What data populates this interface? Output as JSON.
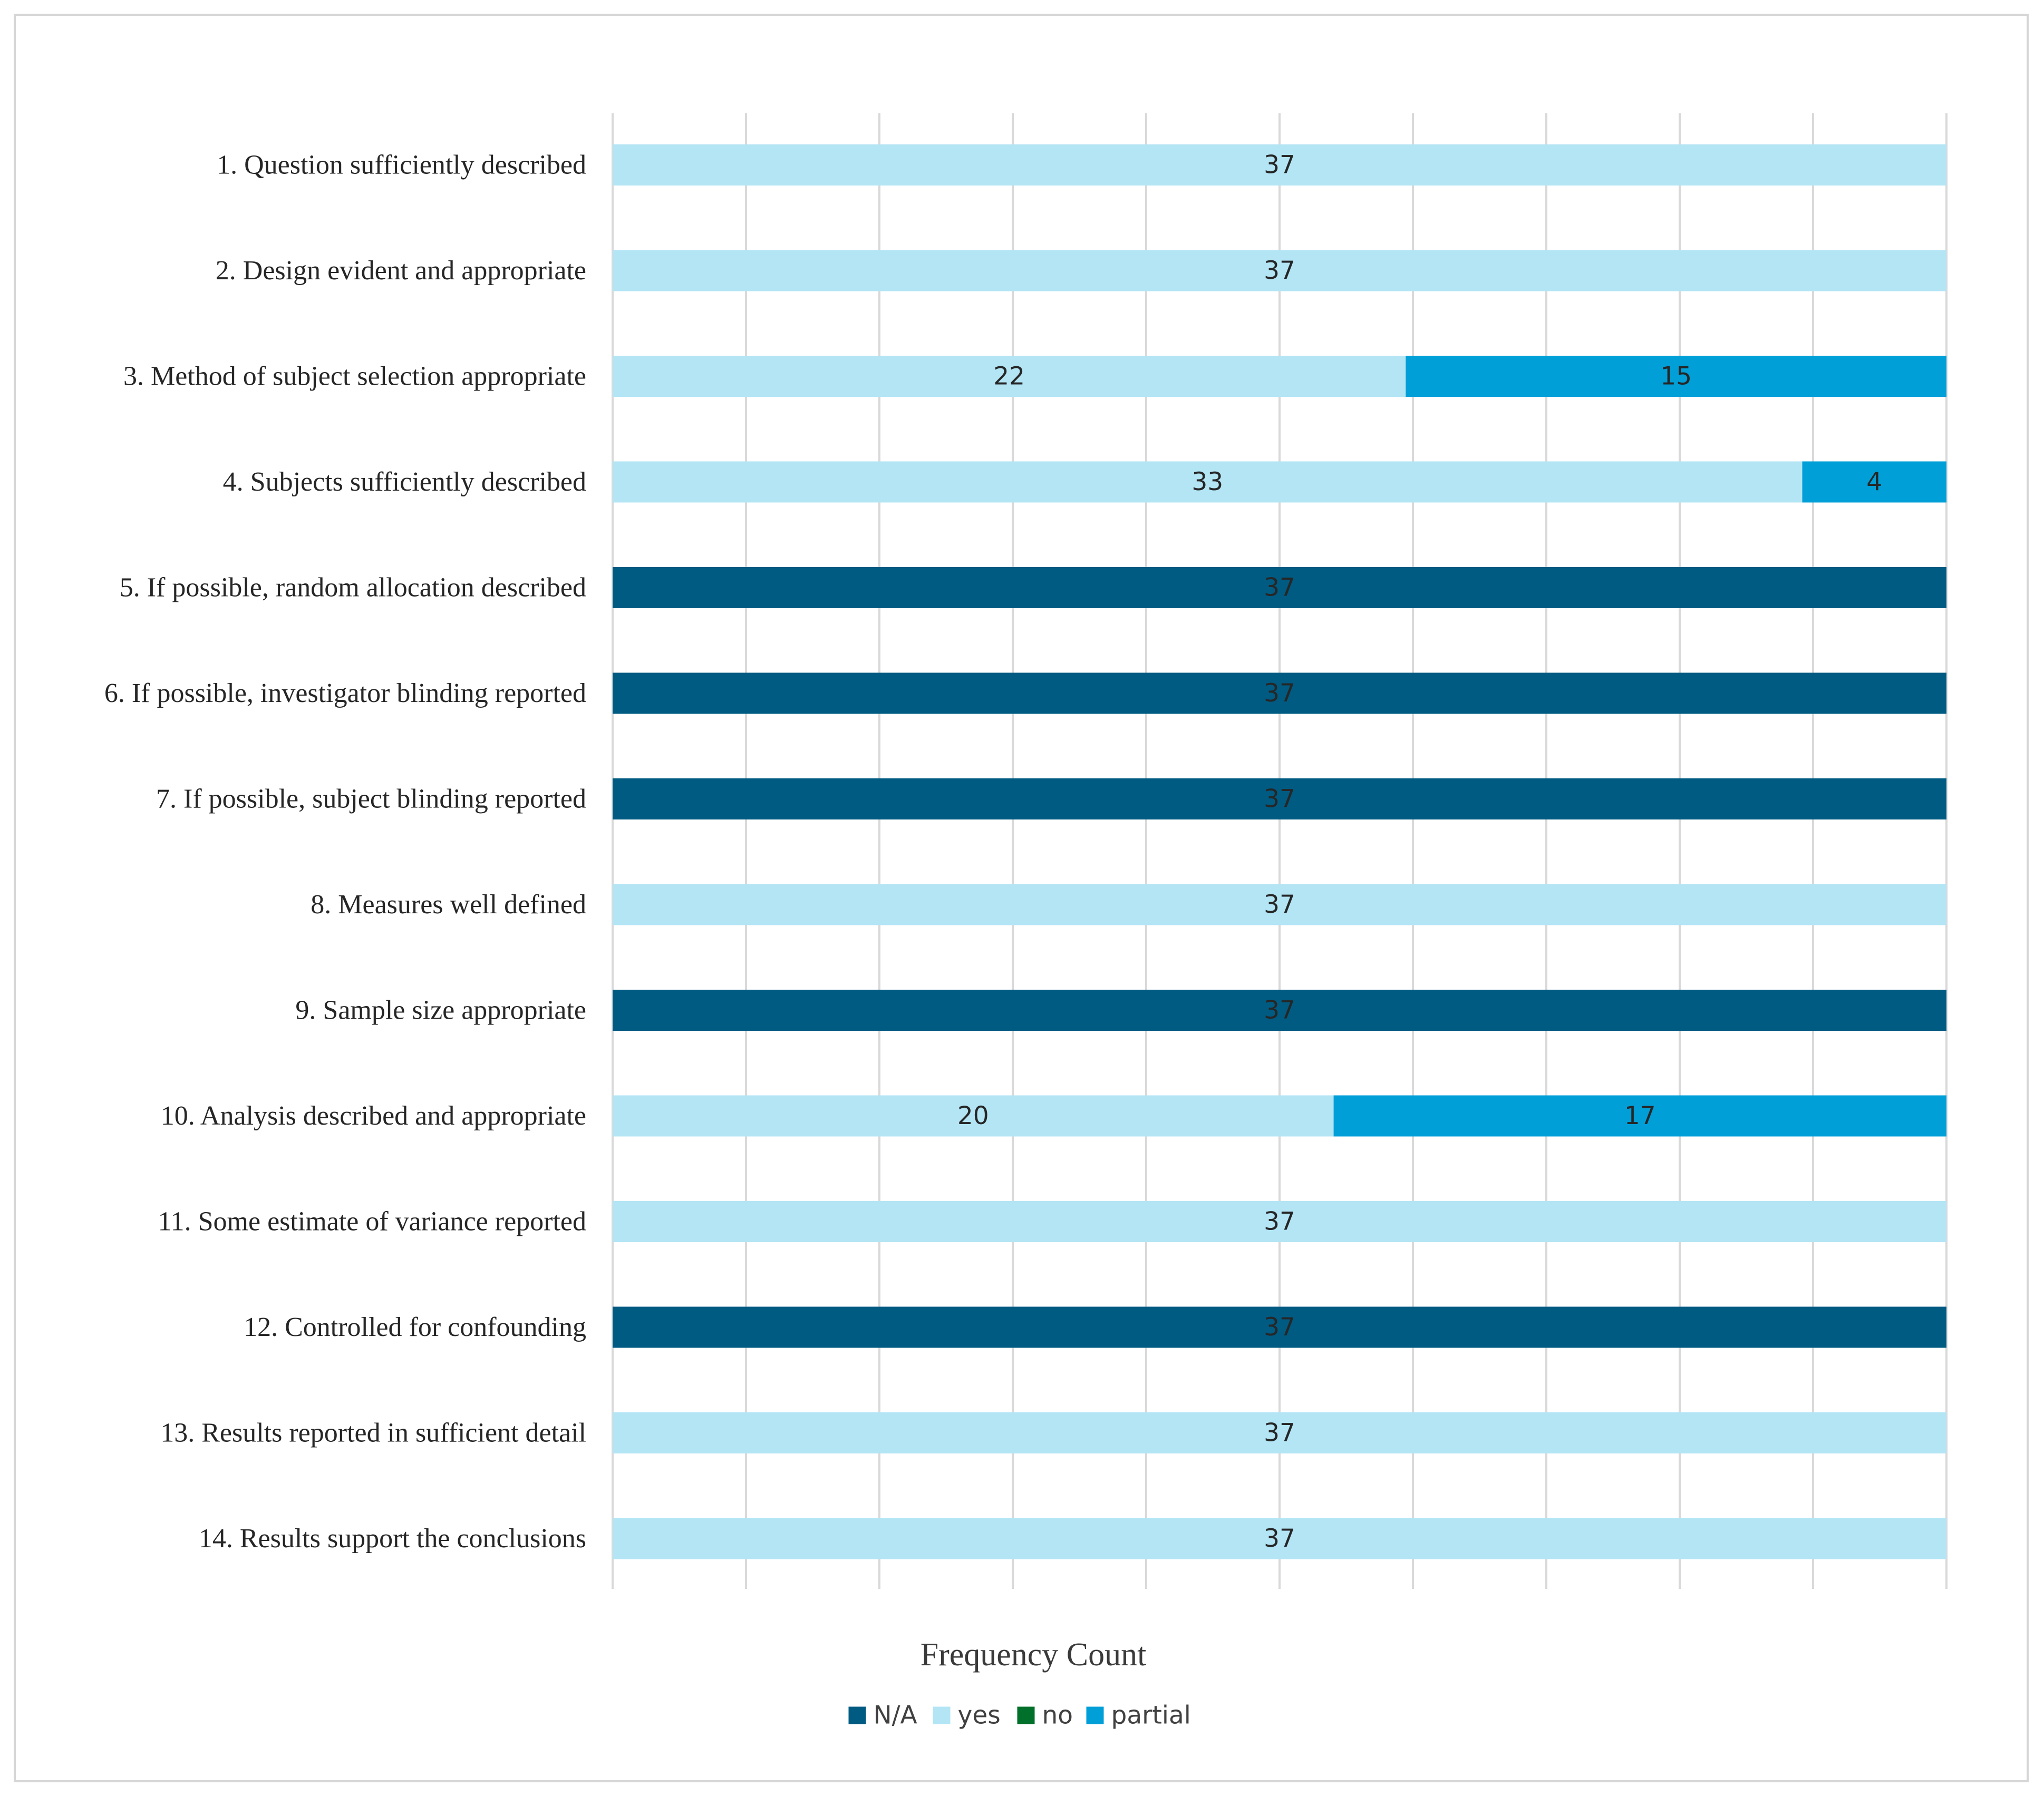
{
  "chart_data": {
    "type": "bar",
    "orientation": "horizontal",
    "stacked": true,
    "title": "",
    "xlabel": "Frequency Count",
    "ylabel": "",
    "xlim": [
      0,
      37
    ],
    "gridlines": "vertical",
    "legend_position": "bottom",
    "categories": [
      "1. Question sufficiently described",
      "2. Design evident and appropriate",
      "3. Method of subject selection appropriate",
      "4. Subjects sufficiently described",
      "5. If possible, random allocation described",
      "6. If possible, investigator blinding reported",
      "7. If possible, subject blinding reported",
      "8. Measures well defined",
      "9. Sample size appropriate",
      "10. Analysis described and appropriate",
      "11. Some estimate of variance reported",
      "12. Controlled for confounding",
      "13. Results reported in sufficient detail",
      "14. Results support the conclusions"
    ],
    "series": [
      {
        "name": "N/A",
        "color": "#005b82",
        "values": [
          0,
          0,
          0,
          0,
          37,
          37,
          37,
          0,
          37,
          0,
          0,
          37,
          0,
          0
        ]
      },
      {
        "name": "yes",
        "color": "#b3e5f5",
        "values": [
          37,
          37,
          22,
          33,
          0,
          0,
          0,
          37,
          0,
          20,
          37,
          0,
          37,
          37
        ]
      },
      {
        "name": "no",
        "color": "#00702a",
        "values": [
          0,
          0,
          0,
          0,
          0,
          0,
          0,
          0,
          0,
          0,
          0,
          0,
          0,
          0
        ]
      },
      {
        "name": "partial",
        "color": "#009fd8",
        "values": [
          0,
          0,
          15,
          4,
          0,
          0,
          0,
          0,
          0,
          17,
          0,
          0,
          0,
          0
        ]
      }
    ]
  }
}
